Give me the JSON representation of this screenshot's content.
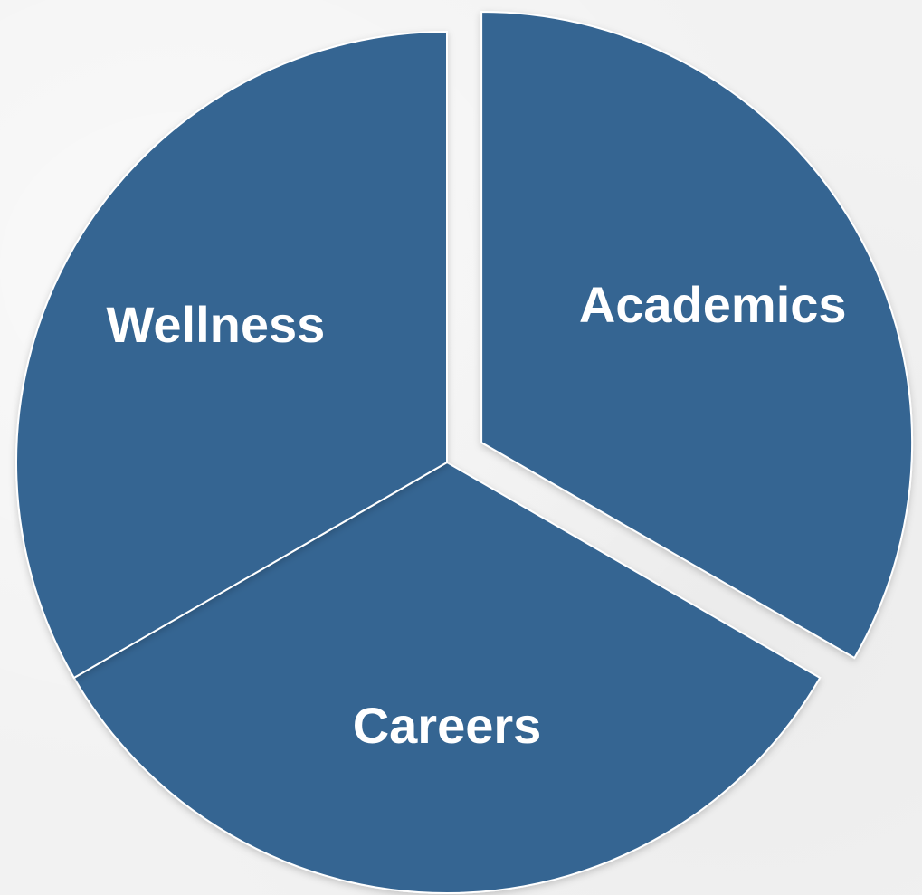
{
  "chart_data": {
    "type": "pie",
    "title": "",
    "categories": [
      "Academics",
      "Careers",
      "Wellness"
    ],
    "values": [
      1,
      1,
      1
    ],
    "exploded": [
      "Academics"
    ],
    "start_angle_deg": 0,
    "colors": {
      "slice_fill": "#356592",
      "slice_stroke": "#ffffff",
      "label": "#ffffff",
      "background": "#f2f2f2"
    },
    "legend": "none"
  }
}
